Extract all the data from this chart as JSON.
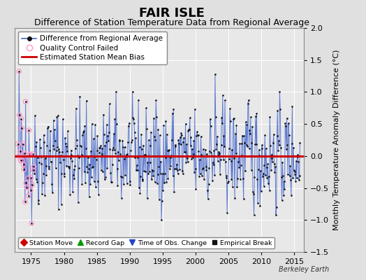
{
  "title": "FAIR ISLE",
  "subtitle": "Difference of Station Temperature Data from Regional Average",
  "ylabel": "Monthly Temperature Anomaly Difference (°C)",
  "xlim": [
    1972.5,
    2016.5
  ],
  "ylim": [
    -1.5,
    2.0
  ],
  "yticks": [
    -1.5,
    -1.0,
    -0.5,
    0.0,
    0.5,
    1.0,
    1.5,
    2.0
  ],
  "xticks": [
    1975,
    1980,
    1985,
    1990,
    1995,
    2000,
    2005,
    2010,
    2015
  ],
  "bias_value": 0.0,
  "line_color": "#4466cc",
  "bias_color": "#cc0000",
  "dot_color": "#111111",
  "qc_color": "#ff99cc",
  "bg_color": "#e0e0e0",
  "plot_bg": "#e8e8e8",
  "grid_color": "#ffffff",
  "title_fontsize": 13,
  "subtitle_fontsize": 9,
  "ylabel_fontsize": 8,
  "tick_fontsize": 8,
  "legend_fontsize": 7.5,
  "seed": 42,
  "n_years": 43,
  "start_year": 1973,
  "qc_months": 30
}
